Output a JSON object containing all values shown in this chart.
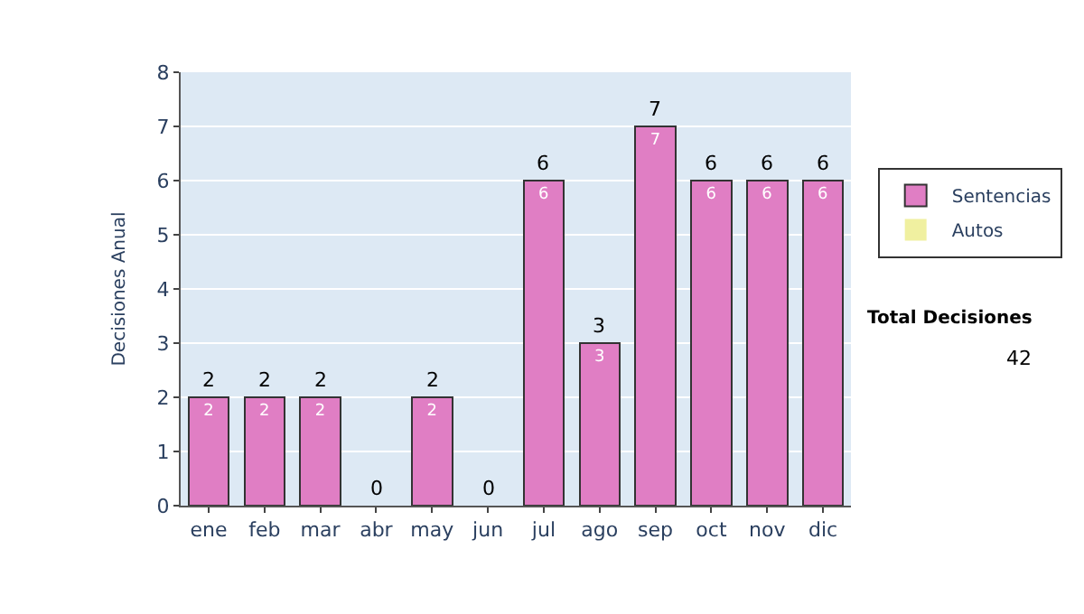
{
  "chart_data": {
    "type": "bar",
    "stacked": true,
    "ylabel": "Decisiones Anual",
    "categories": [
      "ene",
      "feb",
      "mar",
      "abr",
      "may",
      "jun",
      "jul",
      "ago",
      "sep",
      "oct",
      "nov",
      "dic"
    ],
    "series": [
      {
        "name": "Sentencias",
        "color": "#e07ec4",
        "values": [
          2,
          2,
          2,
          0,
          2,
          0,
          6,
          3,
          7,
          6,
          6,
          6
        ],
        "value_labels": [
          "2",
          "2",
          "2",
          null,
          "2",
          null,
          "6",
          "3",
          "7",
          "6",
          "6",
          "6"
        ]
      },
      {
        "name": "Autos",
        "color": "#f0f0a0",
        "values": [
          0,
          0,
          0,
          0,
          0,
          0,
          0,
          0,
          0,
          0,
          0,
          0
        ]
      }
    ],
    "totals": [
      "2",
      "2",
      "2",
      "0",
      "2",
      "0",
      "6",
      "3",
      "7",
      "6",
      "6",
      "6"
    ],
    "ylim": [
      0,
      8
    ],
    "yticks": [
      0,
      1,
      2,
      3,
      4,
      5,
      6,
      7,
      8
    ],
    "grid": "y",
    "legend": "right",
    "annotations": [
      "Total Decisiones",
      "42"
    ]
  }
}
